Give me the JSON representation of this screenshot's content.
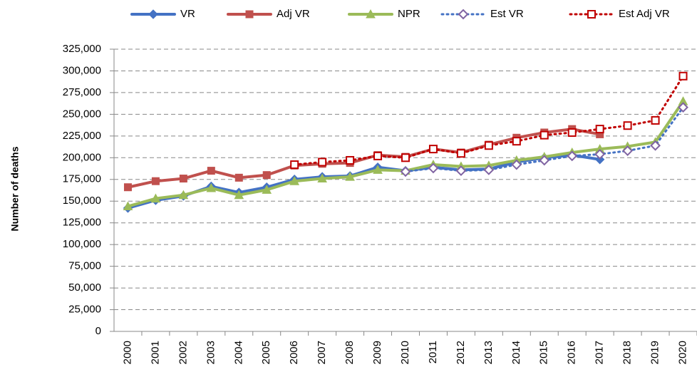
{
  "chart_data": {
    "type": "line",
    "y_label": "Number of deaths",
    "categories": [
      "2000",
      "2001",
      "2002",
      "2003",
      "2004",
      "2005",
      "2006",
      "2007",
      "2008",
      "2009",
      "2010",
      "2011",
      "2012",
      "2013",
      "2014",
      "2015",
      "2016",
      "2017",
      "2018",
      "2019",
      "2020"
    ],
    "ylim": [
      0,
      325000
    ],
    "yticks": [
      0,
      {
        "value": 25000,
        "label": "25,000"
      },
      {
        "value": 50000,
        "label": "50,000"
      },
      {
        "value": 75000,
        "label": "75,000"
      },
      {
        "value": 100000,
        "label": "100,000"
      },
      {
        "value": 125000,
        "label": "125,000"
      },
      {
        "value": 150000,
        "label": "150,000"
      },
      {
        "value": 175000,
        "label": "175,000"
      },
      {
        "value": 200000,
        "label": "200,000"
      },
      {
        "value": 225000,
        "label": "225,000"
      },
      {
        "value": 250000,
        "label": "250,000"
      },
      {
        "value": 275000,
        "label": "275,000"
      },
      {
        "value": 300000,
        "label": "300,000"
      },
      {
        "value": 325000,
        "label": "325,000"
      }
    ],
    "grid": true,
    "legend": "top",
    "series": [
      {
        "name": "VR",
        "color": "#4472c4",
        "marker": "diamond",
        "dotted": false,
        "hollow": false,
        "values": [
          142000,
          151000,
          156000,
          167000,
          160000,
          166000,
          175000,
          178000,
          179000,
          189000,
          185000,
          189000,
          186000,
          187000,
          195000,
          200000,
          203000,
          198000,
          null,
          null,
          null
        ]
      },
      {
        "name": "Adj VR",
        "color": "#c0504d",
        "marker": "square",
        "dotted": false,
        "hollow": false,
        "values": [
          166000,
          173000,
          176000,
          185000,
          177000,
          180000,
          191000,
          193000,
          194000,
          203000,
          201000,
          210000,
          206000,
          215000,
          223000,
          229000,
          233000,
          227000,
          null,
          null,
          null
        ]
      },
      {
        "name": "NPR",
        "color": "#9bbb59",
        "marker": "triangle",
        "dotted": false,
        "hollow": false,
        "values": [
          144000,
          153000,
          157000,
          165000,
          157000,
          163000,
          173000,
          176000,
          178000,
          186000,
          185000,
          192000,
          190000,
          191000,
          197000,
          201000,
          206000,
          210000,
          213000,
          218000,
          265000
        ]
      },
      {
        "name": "Est VR",
        "color": "#8064a2",
        "line_color": "#4472c4",
        "marker": "diamond",
        "dotted": true,
        "hollow": true,
        "values": [
          null,
          null,
          null,
          null,
          null,
          null,
          null,
          null,
          null,
          null,
          184000,
          188000,
          185000,
          186000,
          192000,
          197000,
          202000,
          204000,
          208000,
          214000,
          258000
        ]
      },
      {
        "name": "Est Adj VR",
        "color": "#c00000",
        "marker": "square",
        "dotted": true,
        "hollow": true,
        "values": [
          null,
          null,
          null,
          null,
          null,
          null,
          192000,
          195000,
          197000,
          202000,
          200000,
          210000,
          205000,
          214000,
          219000,
          226000,
          229000,
          233000,
          237000,
          243000,
          294000
        ]
      }
    ]
  }
}
